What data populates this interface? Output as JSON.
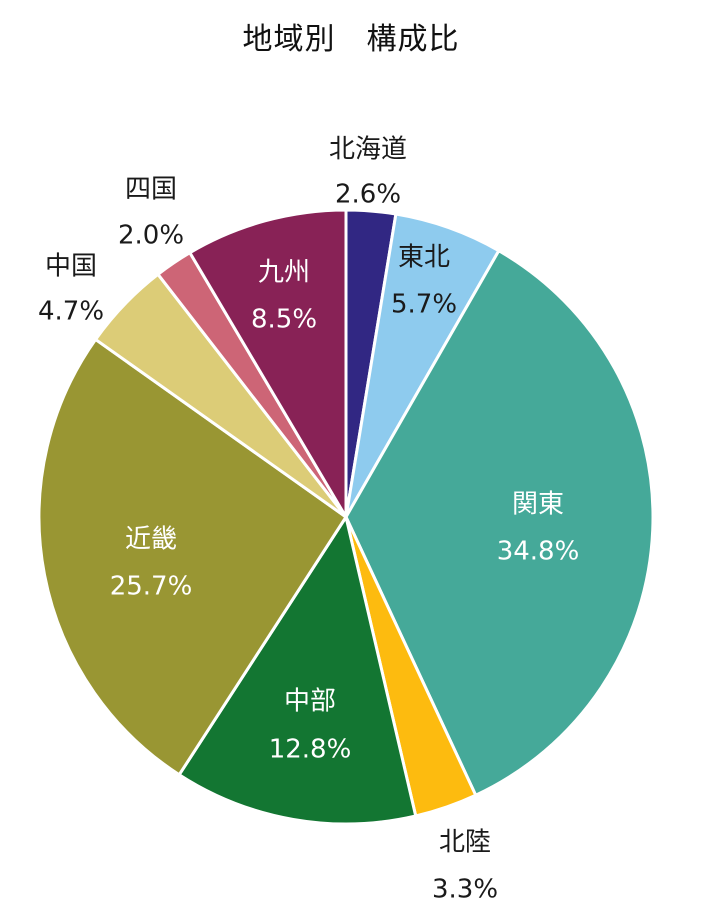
{
  "chart_data": {
    "type": "pie",
    "title": "地域別　構成比",
    "slices": [
      {
        "label": "北海道",
        "value": 2.6,
        "value_label": "2.6%",
        "color": "#312783",
        "label_color": "#1a1a1a"
      },
      {
        "label": "東北",
        "value": 5.7,
        "value_label": "5.7%",
        "color": "#8ecbee",
        "label_color": "#1a1a1a"
      },
      {
        "label": "関東",
        "value": 34.8,
        "value_label": "34.8%",
        "color": "#45a999",
        "label_color": "#ffffff"
      },
      {
        "label": "北陸",
        "value": 3.3,
        "value_label": "3.3%",
        "color": "#fdbb0f",
        "label_color": "#1a1a1a"
      },
      {
        "label": "中部",
        "value": 12.8,
        "value_label": "12.8%",
        "color": "#137632",
        "label_color": "#ffffff"
      },
      {
        "label": "近畿",
        "value": 25.7,
        "value_label": "25.7%",
        "color": "#999633",
        "label_color": "#ffffff"
      },
      {
        "label": "中国",
        "value": 4.7,
        "value_label": "4.7%",
        "color": "#dccc77",
        "label_color": "#1a1a1a"
      },
      {
        "label": "四国",
        "value": 2.0,
        "value_label": "2.0%",
        "color": "#cd6576",
        "label_color": "#1a1a1a"
      },
      {
        "label": "九州",
        "value": 8.5,
        "value_label": "8.5%",
        "color": "#882256",
        "label_color": "#ffffff"
      }
    ]
  }
}
